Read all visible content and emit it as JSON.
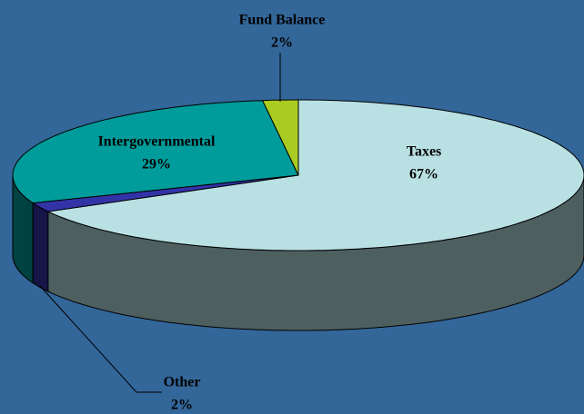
{
  "chart_data": {
    "type": "pie3d",
    "categories": [
      "Taxes",
      "Other",
      "Intergovernmental",
      "Fund Balance"
    ],
    "values": [
      67,
      2,
      29,
      2
    ],
    "value_labels": [
      "67%",
      "2%",
      "29%",
      "2%"
    ],
    "colors": [
      "#b9e1e4",
      "#3333a8",
      "#009b9b",
      "#aacc22"
    ]
  }
}
